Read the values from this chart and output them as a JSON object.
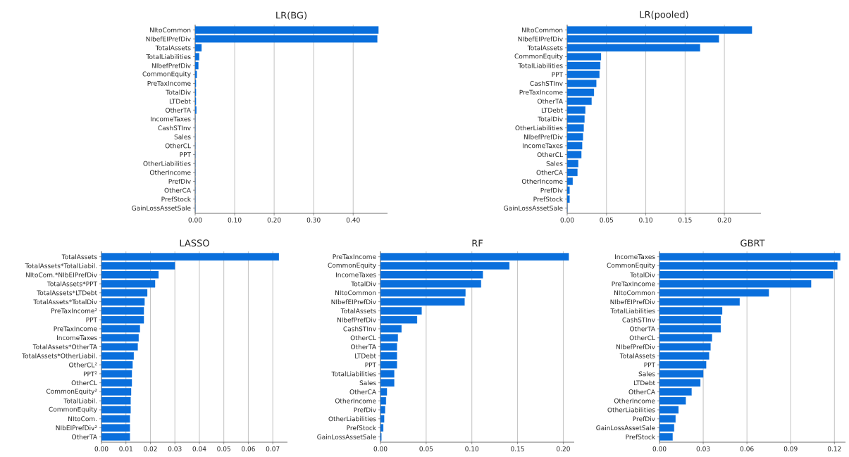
{
  "chart_data": [
    {
      "type": "bar",
      "orientation": "horizontal",
      "title": "LR(BG)",
      "color": "#0a6fdc",
      "grid": "x",
      "categories": [
        "NItoCommon",
        "NIbefEIPrefDiv",
        "TotalAssets",
        "TotalLiabilities",
        "NIbefPrefDiv",
        "CommonEquity",
        "PreTaxIncome",
        "TotalDiv",
        "LTDebt",
        "OtherTA",
        "IncomeTaxes",
        "CashSTInv",
        "Sales",
        "OtherCL",
        "PPT",
        "OtherLiabilities",
        "OtherIncome",
        "PrefDiv",
        "OtherCA",
        "PrefStock",
        "GainLossAssetSale"
      ],
      "values": [
        0.464,
        0.461,
        0.016,
        0.01,
        0.008,
        0.004,
        0.002,
        0.002,
        0.002,
        0.003,
        0,
        0,
        0,
        0,
        0,
        0,
        0,
        0,
        0,
        0,
        0
      ],
      "xlim": [
        0,
        0.487
      ],
      "xticks": [
        {
          "value": 0,
          "label": "0.00"
        },
        {
          "value": 0.1,
          "label": "0.10"
        },
        {
          "value": 0.2,
          "label": "0.20"
        },
        {
          "value": 0.3,
          "label": "0.30"
        },
        {
          "value": 0.4,
          "label": "0.40"
        }
      ]
    },
    {
      "type": "bar",
      "orientation": "horizontal",
      "title": "LR(pooled)",
      "color": "#0a6fdc",
      "grid": "x",
      "categories": [
        "NItoCommon",
        "NIbefEIPrefDiv",
        "TotalAssets",
        "CommonEquity",
        "TotalLiabilities",
        "PPT",
        "CashSTInv",
        "PreTaxIncome",
        "OtherTA",
        "LTDebt",
        "TotalDiv",
        "OtherLiabilities",
        "NIbefPrefDiv",
        "IncomeTaxes",
        "OtherCL",
        "Sales",
        "OtherCA",
        "OtherIncome",
        "PrefDiv",
        "PrefStock",
        "GainLossAssetSale"
      ],
      "values": [
        0.235,
        0.193,
        0.169,
        0.043,
        0.042,
        0.041,
        0.037,
        0.034,
        0.031,
        0.023,
        0.022,
        0.021,
        0.02,
        0.019,
        0.018,
        0.014,
        0.013,
        0.007,
        0.003,
        0.003,
        0
      ],
      "xlim": [
        0,
        0.2465
      ],
      "xticks": [
        {
          "value": 0,
          "label": "0.00"
        },
        {
          "value": 0.05,
          "label": "0.05"
        },
        {
          "value": 0.1,
          "label": "0.10"
        },
        {
          "value": 0.15,
          "label": "0.15"
        },
        {
          "value": 0.2,
          "label": "0.20"
        }
      ]
    },
    {
      "type": "bar",
      "orientation": "horizontal",
      "title": "LASSO",
      "color": "#0a6fdc",
      "grid": "x",
      "categories": [
        "TotalAssets",
        "TotalAssets*TotalLiabil.",
        "NItoCom.*NIbEIPrefDiv",
        "TotalAssets*PPT",
        "TotalAssets*LTDebt",
        "TotalAssets*TotalDiv",
        "PreTaxIncome²",
        "PPT",
        "PreTaxIncome",
        "IncomeTaxes",
        "TotalAssets*OtherTA",
        "TotalAssets*OtherLiabil.",
        "OtherCL²",
        "PPT²",
        "OtherCL",
        "CommonEquity²",
        "TotalLiabil.",
        "CommonEquity",
        "NItoCom.",
        "NIbEIPrefDiv²",
        "OtherTA"
      ],
      "values": [
        0.0725,
        0.03,
        0.0233,
        0.0219,
        0.0187,
        0.0176,
        0.0173,
        0.0173,
        0.0157,
        0.0152,
        0.0148,
        0.0132,
        0.0127,
        0.0124,
        0.0124,
        0.0121,
        0.0119,
        0.0119,
        0.0116,
        0.0116,
        0.0116
      ],
      "xlim": [
        0,
        0.076
      ],
      "xticks": [
        {
          "value": 0,
          "label": "0.00"
        },
        {
          "value": 0.01,
          "label": "0.01"
        },
        {
          "value": 0.02,
          "label": "0.02"
        },
        {
          "value": 0.03,
          "label": "0.03"
        },
        {
          "value": 0.04,
          "label": "0.04"
        },
        {
          "value": 0.05,
          "label": "0.05"
        },
        {
          "value": 0.06,
          "label": "0.06"
        },
        {
          "value": 0.07,
          "label": "0.07"
        }
      ]
    },
    {
      "type": "bar",
      "orientation": "horizontal",
      "title": "RF",
      "color": "#0a6fdc",
      "grid": "x",
      "categories": [
        "PreTaxIncome",
        "CommonEquity",
        "IncomeTaxes",
        "TotalDiv",
        "NItoCommon",
        "NIbefEIPrefDiv",
        "TotalAssets",
        "NIbefPrefDiv",
        "CashSTInv",
        "OtherCL",
        "OtherTA",
        "LTDebt",
        "PPT",
        "TotalLiabilities",
        "Sales",
        "OtherCA",
        "OtherIncome",
        "PrefDiv",
        "OtherLiabilities",
        "PrefStock",
        "GainLossAssetSale"
      ],
      "values": [
        0.206,
        0.141,
        0.112,
        0.11,
        0.093,
        0.092,
        0.045,
        0.04,
        0.023,
        0.019,
        0.018,
        0.018,
        0.018,
        0.015,
        0.015,
        0.007,
        0.006,
        0.005,
        0.004,
        0.003,
        0.001
      ],
      "xlim": [
        0,
        0.212
      ],
      "xticks": [
        {
          "value": 0,
          "label": "0.00"
        },
        {
          "value": 0.05,
          "label": "0.05"
        },
        {
          "value": 0.1,
          "label": "0.10"
        },
        {
          "value": 0.15,
          "label": "0.15"
        },
        {
          "value": 0.2,
          "label": "0.20"
        }
      ]
    },
    {
      "type": "bar",
      "orientation": "horizontal",
      "title": "GBRT",
      "color": "#0a6fdc",
      "grid": "x",
      "categories": [
        "IncomeTaxes",
        "CommonEquity",
        "TotalDiv",
        "PreTaxIncome",
        "NItoCommon",
        "NIbefEIPrefDiv",
        "TotalLiabilities",
        "CashSTInv",
        "OtherTA",
        "OtherCL",
        "NIbefPrefDiv",
        "TotalAssets",
        "PPT",
        "Sales",
        "LTDebt",
        "OtherCA",
        "OtherIncome",
        "OtherLiabilities",
        "PrefDiv",
        "GainLossAssetSale",
        "PrefStock"
      ],
      "values": [
        0.124,
        0.122,
        0.119,
        0.104,
        0.075,
        0.055,
        0.043,
        0.042,
        0.042,
        0.036,
        0.035,
        0.034,
        0.032,
        0.03,
        0.028,
        0.022,
        0.018,
        0.013,
        0.011,
        0.01,
        0.009
      ],
      "xlim": [
        0,
        0.1276
      ],
      "xticks": [
        {
          "value": 0,
          "label": "0.00"
        },
        {
          "value": 0.03,
          "label": "0.03"
        },
        {
          "value": 0.06,
          "label": "0.06"
        },
        {
          "value": 0.09,
          "label": "0.09"
        },
        {
          "value": 0.12,
          "label": "0.12"
        }
      ]
    }
  ]
}
